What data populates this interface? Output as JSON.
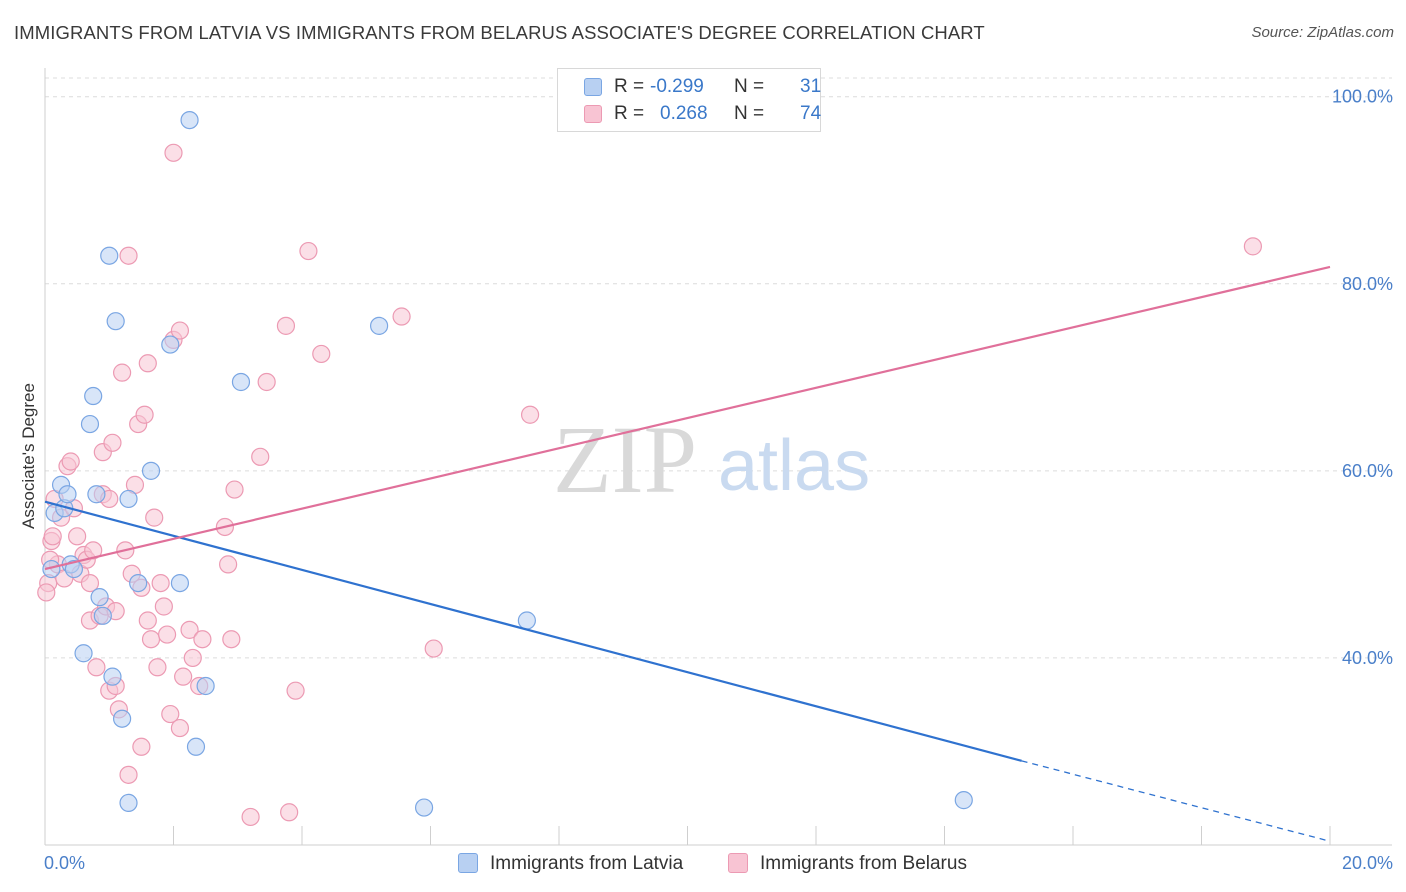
{
  "title": "IMMIGRANTS FROM LATVIA VS IMMIGRANTS FROM BELARUS ASSOCIATE'S DEGREE CORRELATION CHART",
  "source": "Source: ZipAtlas.com",
  "watermark": {
    "zip": "ZIP",
    "atlas": "atlas"
  },
  "legend": {
    "r_label": "R =",
    "n_label": "N =",
    "latvia": {
      "r": "-0.299",
      "n": "31"
    },
    "belarus": {
      "r": "0.268",
      "n": "74"
    }
  },
  "colors": {
    "latvia_fill": "#b8d0f2",
    "latvia_stroke": "#7aa6e3",
    "latvia_line": "#2f72cf",
    "belarus_fill": "#f8c4d3",
    "belarus_stroke": "#ec9ab3",
    "belarus_line": "#e0709a",
    "tick_text": "#4a7fc9"
  },
  "chart_data": {
    "type": "scatter",
    "title": "IMMIGRANTS FROM LATVIA VS IMMIGRANTS FROM BELARUS ASSOCIATE'S DEGREE CORRELATION CHART",
    "xlabel": "",
    "ylabel": "Associate's Degree",
    "xlim": [
      0,
      20
    ],
    "ylim": [
      20,
      102
    ],
    "x_tick_labels": [
      "0.0%",
      "20.0%"
    ],
    "y_ticks": [
      {
        "value": 40,
        "label": "40.0%"
      },
      {
        "value": 60,
        "label": "60.0%"
      },
      {
        "value": 80,
        "label": "80.0%"
      },
      {
        "value": 100,
        "label": "100.0%"
      }
    ],
    "grid": true,
    "legend_position": "top-center",
    "series": [
      {
        "name": "Immigrants from Latvia",
        "trend": {
          "x": [
            0.0,
            15.2
          ],
          "y": [
            56.7,
            29.0
          ],
          "dashed_to": [
            20.0,
            20.4
          ]
        },
        "points": [
          [
            0.1,
            49.5
          ],
          [
            0.15,
            55.5
          ],
          [
            0.25,
            58.5
          ],
          [
            0.3,
            56.0
          ],
          [
            0.35,
            57.5
          ],
          [
            0.4,
            50.0
          ],
          [
            0.45,
            49.5
          ],
          [
            0.6,
            40.5
          ],
          [
            0.7,
            65.0
          ],
          [
            0.75,
            68.0
          ],
          [
            0.8,
            57.5
          ],
          [
            0.85,
            46.5
          ],
          [
            0.9,
            44.5
          ],
          [
            1.0,
            83.0
          ],
          [
            1.05,
            38.0
          ],
          [
            1.1,
            76.0
          ],
          [
            1.2,
            33.5
          ],
          [
            1.3,
            24.5
          ],
          [
            1.3,
            57.0
          ],
          [
            1.45,
            48.0
          ],
          [
            1.65,
            60.0
          ],
          [
            1.95,
            73.5
          ],
          [
            2.1,
            48.0
          ],
          [
            2.25,
            97.5
          ],
          [
            2.35,
            30.5
          ],
          [
            2.5,
            37.0
          ],
          [
            3.05,
            69.5
          ],
          [
            5.2,
            75.5
          ],
          [
            5.9,
            24.0
          ],
          [
            7.5,
            44.0
          ],
          [
            14.3,
            24.8
          ]
        ]
      },
      {
        "name": "Immigrants from Belarus",
        "trend": {
          "x": [
            0.0,
            20.0
          ],
          "y": [
            49.5,
            81.8
          ]
        },
        "points": [
          [
            0.05,
            48.0
          ],
          [
            0.1,
            52.5
          ],
          [
            0.15,
            57.0
          ],
          [
            0.2,
            50.0
          ],
          [
            0.25,
            55.0
          ],
          [
            0.3,
            48.5
          ],
          [
            0.35,
            60.5
          ],
          [
            0.4,
            61.0
          ],
          [
            0.45,
            56.0
          ],
          [
            0.5,
            53.0
          ],
          [
            0.55,
            49.0
          ],
          [
            0.6,
            51.0
          ],
          [
            0.65,
            50.5
          ],
          [
            0.7,
            48.0
          ],
          [
            0.7,
            44.0
          ],
          [
            0.75,
            51.5
          ],
          [
            0.8,
            39.0
          ],
          [
            0.85,
            44.5
          ],
          [
            0.9,
            57.5
          ],
          [
            0.9,
            62.0
          ],
          [
            0.95,
            45.5
          ],
          [
            1.0,
            36.5
          ],
          [
            1.0,
            57.0
          ],
          [
            1.05,
            63.0
          ],
          [
            1.1,
            37.0
          ],
          [
            1.1,
            45.0
          ],
          [
            1.15,
            34.5
          ],
          [
            1.2,
            70.5
          ],
          [
            1.25,
            51.5
          ],
          [
            1.3,
            27.5
          ],
          [
            1.3,
            83.0
          ],
          [
            1.35,
            49.0
          ],
          [
            1.4,
            58.5
          ],
          [
            1.45,
            65.0
          ],
          [
            1.5,
            47.5
          ],
          [
            1.5,
            30.5
          ],
          [
            1.55,
            66.0
          ],
          [
            1.6,
            71.5
          ],
          [
            1.6,
            44.0
          ],
          [
            1.65,
            42.0
          ],
          [
            1.7,
            55.0
          ],
          [
            1.75,
            39.0
          ],
          [
            1.8,
            48.0
          ],
          [
            1.85,
            45.5
          ],
          [
            1.9,
            42.5
          ],
          [
            1.95,
            34.0
          ],
          [
            2.0,
            74.0
          ],
          [
            2.1,
            75.0
          ],
          [
            2.1,
            32.5
          ],
          [
            2.15,
            38.0
          ],
          [
            2.25,
            43.0
          ],
          [
            2.3,
            40.0
          ],
          [
            2.4,
            37.0
          ],
          [
            2.45,
            42.0
          ],
          [
            2.8,
            54.0
          ],
          [
            2.85,
            50.0
          ],
          [
            2.9,
            42.0
          ],
          [
            2.95,
            58.0
          ],
          [
            3.2,
            23.0
          ],
          [
            3.35,
            61.5
          ],
          [
            3.45,
            69.5
          ],
          [
            3.75,
            75.5
          ],
          [
            3.8,
            23.5
          ],
          [
            3.9,
            36.5
          ],
          [
            4.1,
            83.5
          ],
          [
            4.3,
            72.5
          ],
          [
            5.55,
            76.5
          ],
          [
            6.05,
            41.0
          ],
          [
            7.55,
            66.0
          ],
          [
            18.8,
            84.0
          ],
          [
            0.02,
            47.0
          ],
          [
            0.08,
            50.5
          ],
          [
            0.12,
            53.0
          ],
          [
            2.0,
            94.0
          ]
        ]
      }
    ]
  },
  "bottom_legend": {
    "latvia": "Immigrants from Latvia",
    "belarus": "Immigrants from Belarus"
  }
}
